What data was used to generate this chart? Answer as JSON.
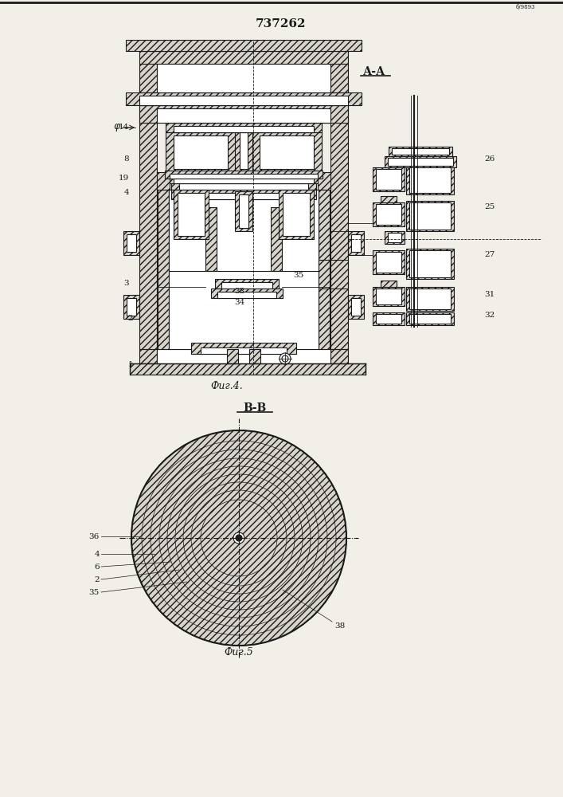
{
  "title": "737262",
  "fig4_label": "А-А",
  "fig4_caption": "Фиг.4.",
  "fig5_label": "В-В",
  "fig5_caption": "Фиг.5",
  "bg_color": "#f2efe8",
  "line_color": "#1a1a1a",
  "hatch_fc": "#d8d4cc"
}
